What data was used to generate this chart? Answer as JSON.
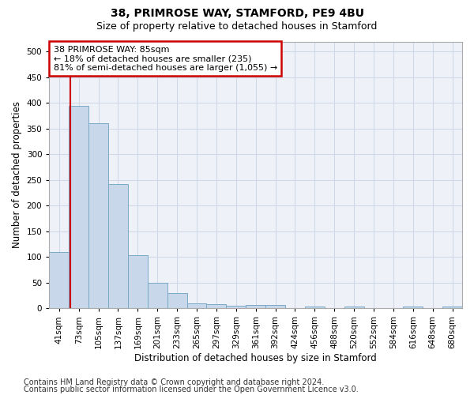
{
  "title": "38, PRIMROSE WAY, STAMFORD, PE9 4BU",
  "subtitle": "Size of property relative to detached houses in Stamford",
  "xlabel": "Distribution of detached houses by size in Stamford",
  "ylabel": "Number of detached properties",
  "footer_line1": "Contains HM Land Registry data © Crown copyright and database right 2024.",
  "footer_line2": "Contains public sector information licensed under the Open Government Licence v3.0.",
  "bar_categories": [
    "41sqm",
    "73sqm",
    "105sqm",
    "137sqm",
    "169sqm",
    "201sqm",
    "233sqm",
    "265sqm",
    "297sqm",
    "329sqm",
    "361sqm",
    "392sqm",
    "424sqm",
    "456sqm",
    "488sqm",
    "520sqm",
    "552sqm",
    "584sqm",
    "616sqm",
    "648sqm",
    "680sqm"
  ],
  "bar_values": [
    110,
    395,
    360,
    242,
    104,
    50,
    30,
    10,
    8,
    5,
    6,
    7,
    0,
    4,
    0,
    3,
    0,
    0,
    4,
    0,
    4
  ],
  "bar_color": "#c8d8ea",
  "bar_edge_color": "#7aaac8",
  "red_line_x": 0.56,
  "annotation_line1": "38 PRIMROSE WAY: 85sqm",
  "annotation_line2": "← 18% of detached houses are smaller (235)",
  "annotation_line3": "81% of semi-detached houses are larger (1,055) →",
  "annotation_box_color": "#ffffff",
  "annotation_box_edge": "#cc0000",
  "ylim": [
    0,
    520
  ],
  "yticks": [
    0,
    50,
    100,
    150,
    200,
    250,
    300,
    350,
    400,
    450,
    500
  ],
  "grid_color": "#d0d8e8",
  "background_color": "#eef2f8",
  "title_fontsize": 10,
  "subtitle_fontsize": 9,
  "axis_label_fontsize": 8.5,
  "tick_fontsize": 7.5,
  "annotation_fontsize": 8,
  "footer_fontsize": 7
}
